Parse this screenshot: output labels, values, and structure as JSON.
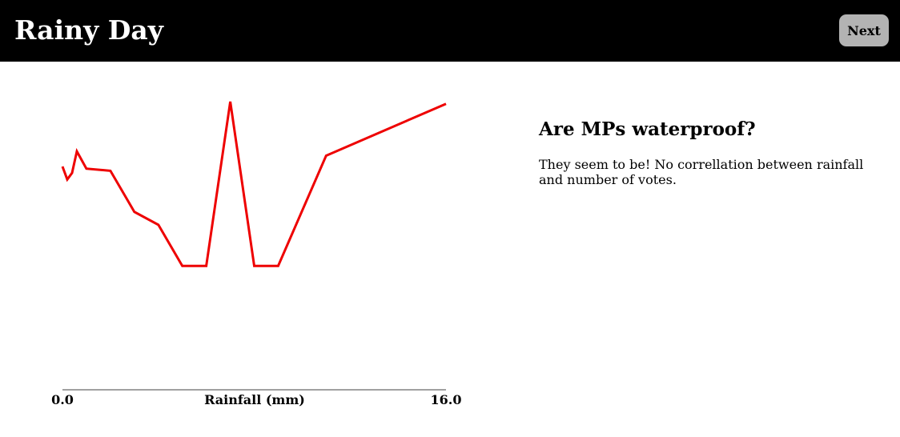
{
  "header": {
    "title": "Rainy Day",
    "next_label": "Next"
  },
  "side": {
    "heading": "Are MPs waterproof?",
    "text": "They seem to be! No correllation between rainfall and number of votes."
  },
  "colors": {
    "header_bg": "#000000",
    "line": "#ee0000",
    "button_bg": "#b3b3b3",
    "axis": "#808080"
  },
  "chart_data": {
    "type": "line",
    "xlabel": "Rainfall (mm)",
    "ylabel": "",
    "title": "",
    "xlim": [
      0,
      16
    ],
    "ylim": [
      0,
      100
    ],
    "x_tick_labels": [
      "0.0",
      "16.0"
    ],
    "grid": false,
    "y_axis_shown": false,
    "series": [
      {
        "x": [
          0.0,
          0.2,
          0.4,
          0.6,
          1.0,
          2.0,
          3.0,
          4.0,
          5.0,
          6.0,
          7.0,
          8.0,
          9.0,
          11.0,
          16.0
        ],
        "y": [
          70,
          64,
          67,
          77,
          69,
          68,
          49,
          43,
          24,
          24,
          100,
          24,
          24,
          75,
          99
        ]
      }
    ]
  }
}
